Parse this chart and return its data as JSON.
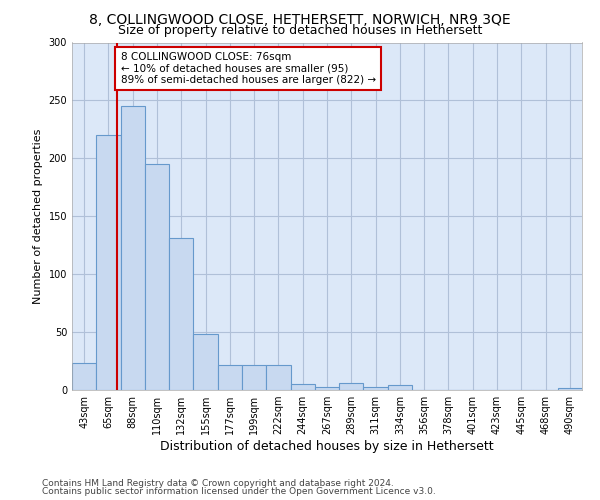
{
  "title_line1": "8, COLLINGWOOD CLOSE, HETHERSETT, NORWICH, NR9 3QE",
  "title_line2": "Size of property relative to detached houses in Hethersett",
  "xlabel": "Distribution of detached houses by size in Hethersett",
  "ylabel": "Number of detached properties",
  "footnote_line1": "Contains HM Land Registry data © Crown copyright and database right 2024.",
  "footnote_line2": "Contains public sector information licensed under the Open Government Licence v3.0.",
  "bar_labels": [
    "43sqm",
    "65sqm",
    "88sqm",
    "110sqm",
    "132sqm",
    "155sqm",
    "177sqm",
    "199sqm",
    "222sqm",
    "244sqm",
    "267sqm",
    "289sqm",
    "311sqm",
    "334sqm",
    "356sqm",
    "378sqm",
    "401sqm",
    "423sqm",
    "445sqm",
    "468sqm",
    "490sqm"
  ],
  "bar_values": [
    23,
    220,
    245,
    195,
    131,
    48,
    22,
    22,
    22,
    5,
    3,
    6,
    3,
    4,
    0,
    0,
    0,
    0,
    0,
    0,
    2
  ],
  "bar_color": "#c8d9f0",
  "bar_edgecolor": "#6699cc",
  "vline_color": "#cc0000",
  "vline_x": 1.35,
  "annotation_text": "8 COLLINGWOOD CLOSE: 76sqm\n← 10% of detached houses are smaller (95)\n89% of semi-detached houses are larger (822) →",
  "annotation_box_facecolor": "white",
  "annotation_box_edgecolor": "#cc0000",
  "ylim": [
    0,
    300
  ],
  "yticks": [
    0,
    50,
    100,
    150,
    200,
    250,
    300
  ],
  "grid_color": "#b0c0d8",
  "bg_color": "#dce8f8",
  "title1_fontsize": 10,
  "title2_fontsize": 9,
  "xlabel_fontsize": 9,
  "ylabel_fontsize": 8,
  "tick_fontsize": 7,
  "annot_fontsize": 7.5,
  "footnote_fontsize": 6.5
}
